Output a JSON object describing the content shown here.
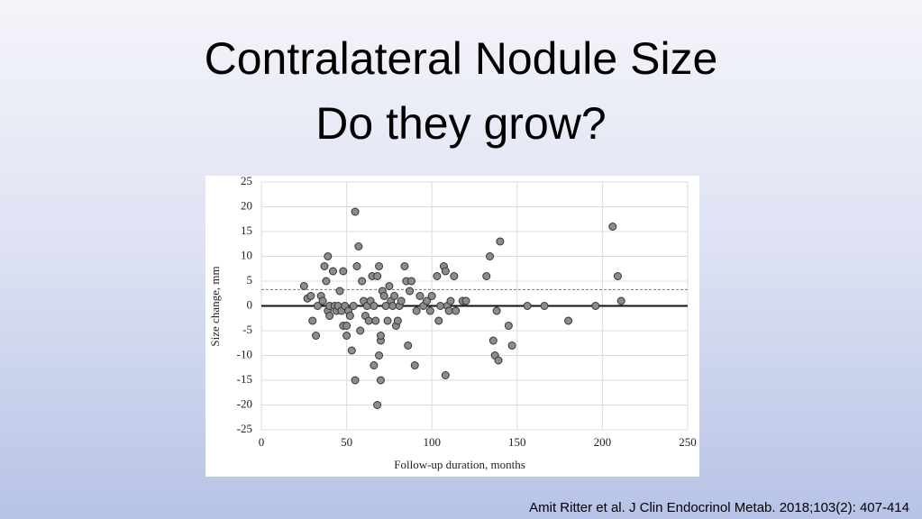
{
  "slide_title": [
    "Contralateral Nodule Size",
    "Do they grow?"
  ],
  "chart_data": {
    "type": "scatter",
    "x_label": "Follow-up duration, months",
    "y_label": "Size change, mm",
    "xlim": [
      0,
      250
    ],
    "xticks": [
      0,
      50,
      100,
      150,
      200,
      250
    ],
    "ylim": [
      -25,
      25
    ],
    "yticks": [
      -25,
      -20,
      -15,
      -10,
      -5,
      0,
      5,
      10,
      15,
      20,
      25
    ],
    "grid": true,
    "dashed_line_y": 3.3,
    "color": "#8c8c8c",
    "x": [
      25,
      27,
      29,
      30,
      32,
      33,
      35,
      36,
      37,
      38,
      39,
      39,
      40,
      40,
      42,
      43,
      44,
      45,
      46,
      47,
      48,
      48,
      49,
      50,
      50,
      51,
      52,
      53,
      54,
      55,
      55,
      56,
      57,
      58,
      59,
      60,
      61,
      62,
      63,
      64,
      65,
      66,
      66,
      67,
      68,
      68,
      69,
      69,
      70,
      70,
      70,
      71,
      72,
      73,
      74,
      75,
      76,
      77,
      78,
      79,
      80,
      81,
      82,
      84,
      85,
      86,
      87,
      88,
      90,
      91,
      93,
      95,
      97,
      99,
      100,
      103,
      104,
      105,
      107,
      108,
      108,
      109,
      110,
      111,
      113,
      114,
      118,
      120,
      132,
      134,
      136,
      137,
      138,
      139,
      140,
      145,
      147,
      156,
      166,
      180,
      196,
      206,
      209,
      211
    ],
    "y": [
      4,
      1.5,
      2,
      -3,
      -6,
      0,
      2,
      1,
      8,
      5,
      10,
      -1,
      -2,
      0,
      7,
      0,
      -1,
      0,
      3,
      -1,
      7,
      -4,
      0,
      -4,
      -6,
      -1,
      -2,
      -9,
      0,
      19,
      -15,
      8,
      12,
      -5,
      5,
      1,
      -2,
      0,
      -3,
      1,
      6,
      0,
      -12,
      -3,
      -20,
      6,
      -10,
      8,
      -7,
      -6,
      -15,
      3,
      2,
      0,
      -3,
      4,
      1,
      0,
      2,
      -4,
      -3,
      0,
      1,
      8,
      5,
      -8,
      3,
      5,
      -12,
      -1,
      2,
      0,
      1,
      -1,
      2,
      6,
      -3,
      0,
      8,
      7,
      -14,
      0,
      -1,
      1,
      6,
      -1,
      1,
      1,
      6,
      10,
      -7,
      -10,
      -1,
      -11,
      13,
      -4,
      -8,
      0,
      0,
      -3,
      0,
      16,
      6,
      1
    ]
  },
  "citation": "Amit Ritter et al.  J Clin Endocrinol Metab. 2018;103(2): 407-414"
}
